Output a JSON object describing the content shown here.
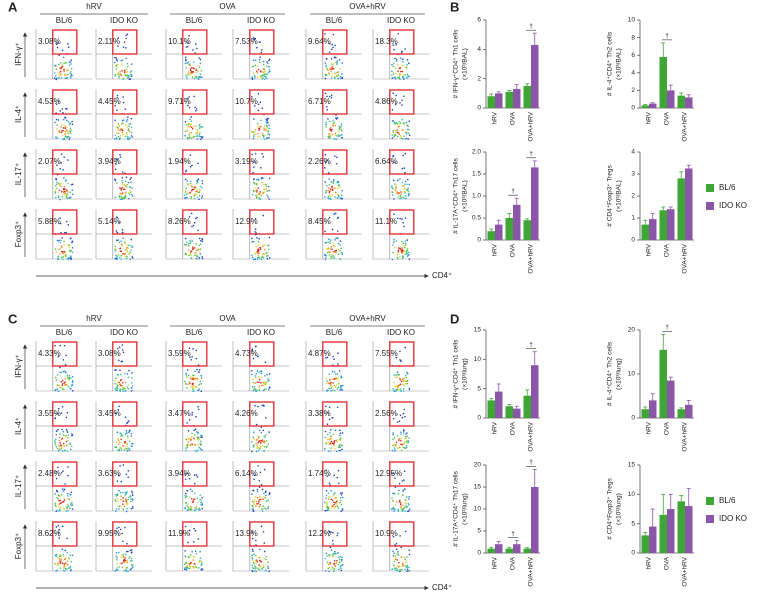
{
  "panel_labels": [
    "A",
    "B",
    "C",
    "D"
  ],
  "flow": [
    {
      "groups": [
        "hRV",
        "OVA",
        "OVA+hRV"
      ],
      "column_labels": [
        "BL/6",
        "IDO KO",
        "BL/6",
        "IDO KO",
        "BL/6",
        "IDO KO"
      ],
      "row_labels": [
        "IFN-γ⁺",
        "IL-4⁺",
        "IL-17⁺",
        "Foxp3⁺"
      ],
      "x_label": "CD4⁺",
      "percentages": [
        [
          "3.08%",
          "2.11%",
          "10.1%",
          "7.53%",
          "9.64%",
          "18.3%"
        ],
        [
          "4.53%",
          "4.45%",
          "9.71%",
          "10.7%",
          "6.71%",
          "4.86%"
        ],
        [
          "2.07%",
          "3.94%",
          "1.94%",
          "3.19%",
          "2.26%",
          "6.64%"
        ],
        [
          "5.88%",
          "5.14%",
          "8.26%",
          "12.9%",
          "8.45%",
          "11.1%"
        ]
      ]
    },
    {
      "groups": [
        "hRV",
        "OVA",
        "OVA+hRV"
      ],
      "column_labels": [
        "BL/6",
        "IDO KO",
        "BL/6",
        "IDO KO",
        "BL/6",
        "IDO KO"
      ],
      "row_labels": [
        "IFN-γ⁺",
        "IL-4⁺",
        "IL-17⁺",
        "Foxp3⁺"
      ],
      "x_label": "CD4⁺",
      "percentages": [
        [
          "4.33%",
          "3.08%",
          "3.59%",
          "4.73%",
          "4.87%",
          "7.55%"
        ],
        [
          "3.55%",
          "3.45%",
          "3.47%",
          "4.26%",
          "3.38%",
          "2.56%"
        ],
        [
          "2.48%",
          "3.63%",
          "3.94%",
          "6.14%",
          "1.74%",
          "12.95%"
        ],
        [
          "8.62%",
          "9.95%",
          "11.9%",
          "13.9%",
          "12.2%",
          "10.9%"
        ]
      ]
    }
  ],
  "chart_data": [
    {
      "type": "bar",
      "ylabel": [
        "# IFN-γ⁺CD4⁺ Th1 cells",
        "(×10³/BAL)"
      ],
      "categories": [
        "hRV",
        "OVA",
        "OVA+hRV"
      ],
      "series": [
        {
          "color": "#3fa535",
          "values": [
            0.8,
            1.1,
            1.5
          ],
          "errors": [
            0.15,
            0.1,
            0.15
          ]
        },
        {
          "color": "#8b55a8",
          "values": [
            1.0,
            1.3,
            4.3
          ],
          "errors": [
            0.1,
            0.3,
            0.8
          ]
        }
      ],
      "significance": [
        null,
        null,
        "†"
      ],
      "ylim": [
        0,
        6
      ],
      "yticks": [
        0,
        2,
        4,
        6
      ]
    },
    {
      "type": "bar",
      "ylabel": [
        "# IL-4⁺CD4⁺ Th2 cells",
        "(×10³/BAL)"
      ],
      "categories": [
        "hRV",
        "OVA",
        "OVA+hRV"
      ],
      "series": [
        {
          "color": "#3fa535",
          "values": [
            0.3,
            5.8,
            1.4
          ],
          "errors": [
            0.1,
            1.6,
            0.3
          ]
        },
        {
          "color": "#8b55a8",
          "values": [
            0.5,
            2.0,
            1.2
          ],
          "errors": [
            0.1,
            0.6,
            0.3
          ]
        }
      ],
      "significance": [
        null,
        "†",
        null
      ],
      "ylim": [
        0,
        10
      ],
      "yticks": [
        0,
        2,
        4,
        6,
        8,
        10
      ]
    },
    {
      "type": "bar",
      "ylabel": [
        "# IL-17A⁺CD4⁺ Th17 cells",
        "(×10³/BAL)"
      ],
      "categories": [
        "hRV",
        "OVA",
        "OVA+hRV"
      ],
      "series": [
        {
          "color": "#3fa535",
          "values": [
            0.2,
            0.5,
            0.45
          ],
          "errors": [
            0.05,
            0.1,
            0.03
          ]
        },
        {
          "color": "#8b55a8",
          "values": [
            0.35,
            0.8,
            1.65
          ],
          "errors": [
            0.1,
            0.15,
            0.15
          ]
        }
      ],
      "significance": [
        null,
        "†",
        "†"
      ],
      "ylim": [
        0,
        2
      ],
      "yticks": [
        0,
        0.5,
        {
          "value": 1,
          "label": "1.0"
        },
        1.5,
        {
          "value": 2,
          "label": "2.0"
        }
      ]
    },
    {
      "type": "bar",
      "ylabel": [
        "# CD4⁺Foxp3⁺ Tregs",
        "(×10³/BAL)"
      ],
      "categories": [
        "hRV",
        "OVA",
        "OVA+hRV"
      ],
      "series": [
        {
          "name": "BL/6",
          "color": "#3fa535",
          "values": [
            0.7,
            1.35,
            2.8
          ],
          "errors": [
            0.2,
            0.15,
            0.3
          ]
        },
        {
          "name": "IDO KO",
          "color": "#8b55a8",
          "values": [
            0.95,
            1.4,
            3.25
          ],
          "errors": [
            0.25,
            0.1,
            0.15
          ]
        }
      ],
      "ylim": [
        0,
        4
      ],
      "yticks": [
        0,
        1,
        2,
        3,
        4
      ]
    },
    {
      "type": "bar",
      "ylabel": [
        "# IFN-γ⁺CD4⁺ Th1 cells",
        "(×10³/lung)"
      ],
      "categories": [
        "hRV",
        "OVA",
        "OVA+hRV"
      ],
      "series": [
        {
          "color": "#3fa535",
          "values": [
            3.0,
            2.0,
            3.8
          ],
          "errors": [
            0.3,
            0.3,
            1.0
          ]
        },
        {
          "color": "#8b55a8",
          "values": [
            4.5,
            1.6,
            9.0
          ],
          "errors": [
            1.3,
            0.4,
            2.3
          ]
        }
      ],
      "significance": [
        null,
        null,
        "†"
      ],
      "ylim": [
        0,
        15
      ],
      "yticks": [
        0,
        5,
        10,
        15
      ]
    },
    {
      "type": "bar",
      "ylabel": [
        "# IL-4⁺CD4⁺ Th2 cells",
        "(×10³/lung)"
      ],
      "categories": [
        "hRV",
        "OVA",
        "OVA+hRV"
      ],
      "series": [
        {
          "color": "#3fa535",
          "values": [
            2,
            15.5,
            2
          ],
          "errors": [
            0.5,
            3.5,
            0.3
          ]
        },
        {
          "color": "#8b55a8",
          "values": [
            4,
            8.5,
            3
          ],
          "errors": [
            1.5,
            0.8,
            1.0
          ]
        }
      ],
      "significance": [
        null,
        "†",
        null
      ],
      "ylim": [
        0,
        20
      ],
      "yticks": [
        0,
        10,
        20
      ]
    },
    {
      "type": "bar",
      "ylabel": [
        "# IL-17A⁺CD4⁺ Th17 cells",
        "(×10³/lung)"
      ],
      "categories": [
        "hRV",
        "OVA",
        "OVA+hRV"
      ],
      "series": [
        {
          "color": "#3fa535",
          "values": [
            1.0,
            1.0,
            1.0
          ],
          "errors": [
            0.3,
            0.3,
            0.2
          ]
        },
        {
          "color": "#8b55a8",
          "values": [
            2.0,
            2.0,
            15
          ],
          "errors": [
            0.6,
            0.8,
            4
          ]
        }
      ],
      "significance": [
        null,
        "†",
        "†"
      ],
      "ylim": [
        0,
        20
      ],
      "yticks": [
        0,
        5,
        10,
        15,
        20
      ]
    },
    {
      "type": "bar",
      "ylabel": [
        "# CD4⁺Foxp3⁺ Tregs",
        "(×10³/lung)"
      ],
      "categories": [
        "hRV",
        "OVA",
        "OVA+hRV"
      ],
      "series": [
        {
          "name": "BL/6",
          "color": "#3fa535",
          "values": [
            3,
            6.5,
            8.8
          ],
          "errors": [
            0.5,
            3.5,
            1.0
          ]
        },
        {
          "name": "IDO KO",
          "color": "#8b55a8",
          "values": [
            4.5,
            7.5,
            8.0
          ],
          "errors": [
            3,
            2.5,
            3
          ]
        }
      ],
      "ylim": [
        0,
        15
      ],
      "yticks": [
        0,
        5,
        10,
        15
      ]
    }
  ]
}
